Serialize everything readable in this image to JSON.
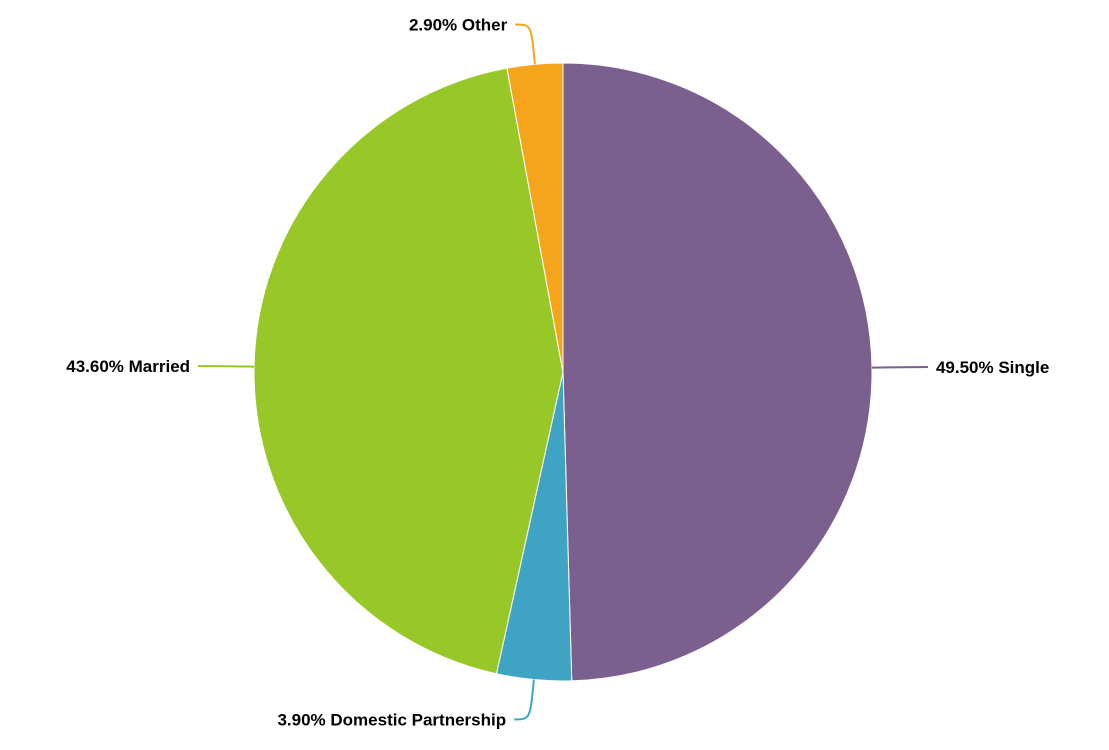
{
  "chart_data": {
    "type": "pie",
    "start_angle_deg": 0,
    "direction": "clockwise",
    "slices": [
      {
        "name": "Single",
        "value": 49.5,
        "label": "49.50% Single",
        "color": "#7b5f8f",
        "label_side": "right"
      },
      {
        "name": "Domestic Partnership",
        "value": 3.9,
        "label": "3.90% Domestic Partnership",
        "color": "#3fa4c4",
        "label_side": "left"
      },
      {
        "name": "Married",
        "value": 43.6,
        "label": "43.60% Married",
        "color": "#97c827",
        "label_side": "left"
      },
      {
        "name": "Other",
        "value": 2.9,
        "label": "2.90% Other",
        "color": "#f4a51c",
        "label_side": "left"
      }
    ]
  }
}
